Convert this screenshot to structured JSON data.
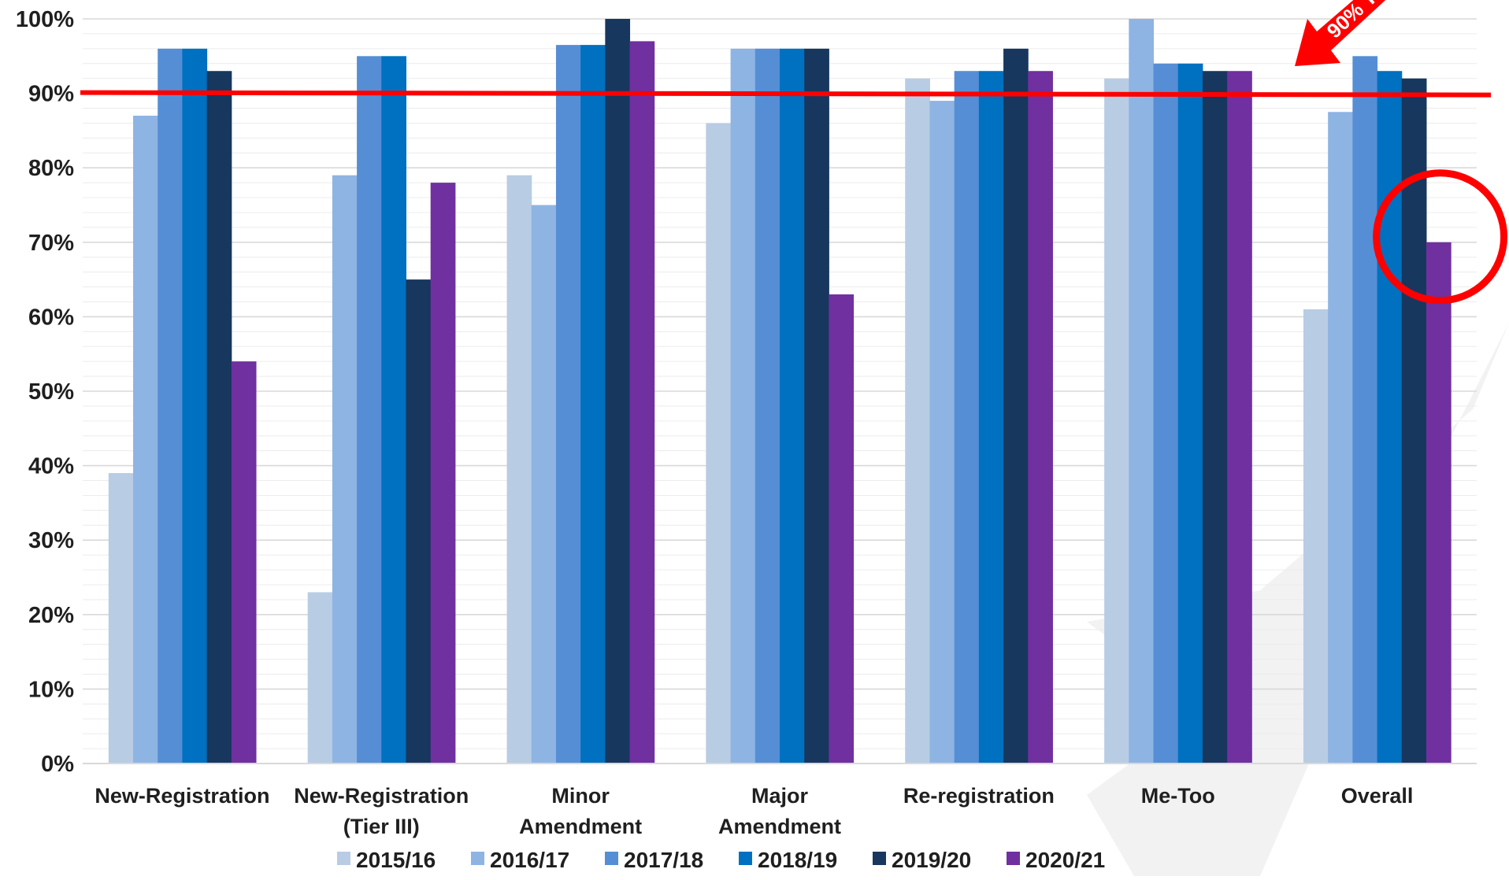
{
  "chart_data": {
    "type": "bar",
    "categories": [
      [
        "New-Registration"
      ],
      [
        "New-Registration",
        "(Tier III)"
      ],
      [
        "Minor",
        "Amendment"
      ],
      [
        "Major",
        "Amendment"
      ],
      [
        "Re-registration"
      ],
      [
        "Me-Too"
      ],
      [
        "Overall"
      ]
    ],
    "series": [
      {
        "name": "2015/16",
        "color": "#b8cce4",
        "values": [
          39,
          23,
          79,
          86,
          92,
          92,
          61
        ]
      },
      {
        "name": "2016/17",
        "color": "#8eb4e3",
        "values": [
          87,
          79,
          75,
          96,
          89,
          100,
          87.5
        ]
      },
      {
        "name": "2017/18",
        "color": "#558ed5",
        "values": [
          96,
          95,
          96.5,
          96,
          93,
          94,
          95
        ]
      },
      {
        "name": "2018/19",
        "color": "#0070c0",
        "values": [
          96,
          95,
          96.5,
          96,
          93,
          94,
          93
        ]
      },
      {
        "name": "2019/20",
        "color": "#17375e",
        "values": [
          93,
          65,
          100,
          96,
          96,
          93,
          92
        ]
      },
      {
        "name": "2020/21",
        "color": "#7030a0",
        "values": [
          54,
          78,
          97,
          63,
          93,
          93,
          70
        ]
      }
    ],
    "y_ticks": [
      "0%",
      "10%",
      "20%",
      "30%",
      "40%",
      "50%",
      "60%",
      "70%",
      "80%",
      "90%",
      "100%"
    ],
    "ylim": [
      0,
      100
    ],
    "grid": true,
    "legend_position": "bottom",
    "target_line": {
      "value": 90,
      "color": "#ff0000",
      "label": "90% T"
    },
    "highlight": {
      "category": "Overall",
      "series": "2020/21",
      "color": "#ff0000"
    },
    "title": "",
    "xlabel": "",
    "ylabel": ""
  }
}
